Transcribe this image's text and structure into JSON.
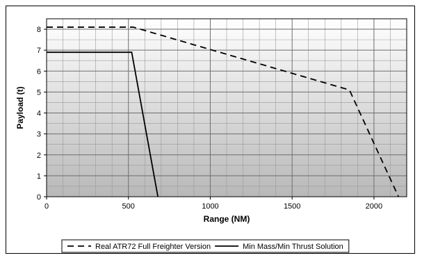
{
  "chart_data": {
    "type": "line",
    "xlabel": "Range (NM)",
    "ylabel": "Payload (t)",
    "xlim": [
      0,
      2200
    ],
    "ylim": [
      0,
      8.5
    ],
    "x_ticks": [
      0,
      500,
      1000,
      1500,
      2000
    ],
    "y_ticks": [
      0,
      1,
      2,
      3,
      4,
      5,
      6,
      7,
      8
    ],
    "grid": true,
    "legend_position": "bottom",
    "series": [
      {
        "name": "Real ATR72 Full Freighter Version",
        "style": "dashed",
        "color": "#000000",
        "x": [
          0,
          530,
          1850,
          2150
        ],
        "y": [
          8.1,
          8.1,
          5.1,
          0
        ]
      },
      {
        "name": "Min Mass/Min Thrust Solution",
        "style": "solid",
        "color": "#000000",
        "x": [
          0,
          520,
          680
        ],
        "y": [
          6.9,
          6.9,
          0
        ]
      }
    ]
  }
}
